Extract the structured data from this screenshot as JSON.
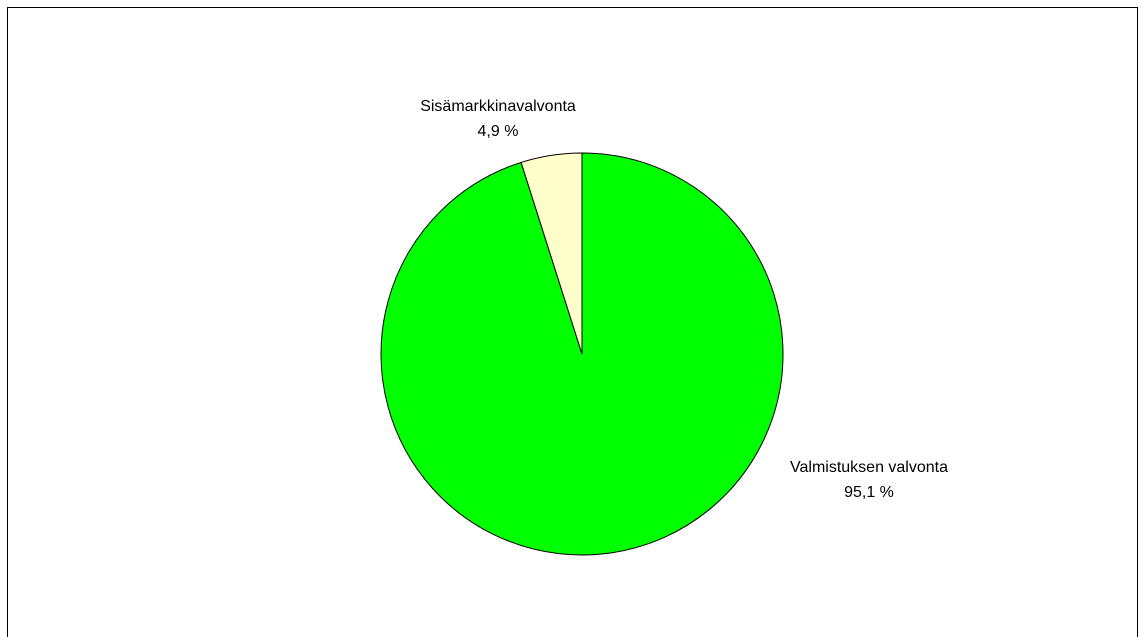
{
  "chart_data": {
    "type": "pie",
    "categories": [
      "Valmistuksen valvonta",
      "Sisämarkkinavalvonta"
    ],
    "values": [
      95.1,
      4.9
    ],
    "value_labels": [
      "95,1 %",
      "4,9 %"
    ],
    "colors": [
      "#00ff00",
      "#ffffcc"
    ]
  }
}
